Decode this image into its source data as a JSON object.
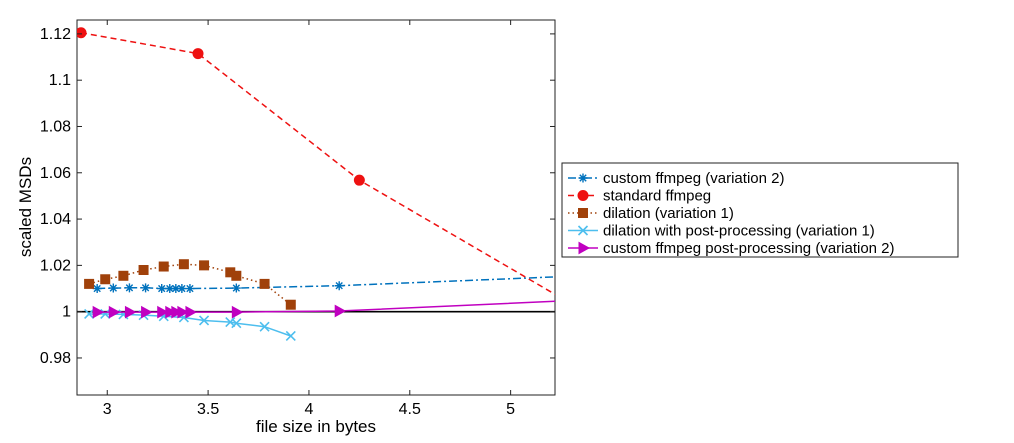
{
  "chart_data": {
    "type": "line",
    "title": "",
    "xlabel": "file size in bytes",
    "ylabel": "scaled MSDs",
    "xlim": [
      2.85,
      5.22
    ],
    "ylim": [
      0.964,
      1.126
    ],
    "xticks": [
      3,
      3.5,
      4,
      4.5,
      5
    ],
    "xtick_labels": [
      "3",
      "3.5",
      "4",
      "4.5",
      "5"
    ],
    "yticks": [
      0.98,
      1.0,
      1.02,
      1.04,
      1.06,
      1.08,
      1.1,
      1.12
    ],
    "ytick_labels": [
      "0.98",
      "1",
      "1.02",
      "1.04",
      "1.06",
      "1.08",
      "1.1",
      "1.12"
    ],
    "grid": false,
    "legend_position": "outside-right",
    "reference_line": {
      "y": 1.0,
      "color": "#000000"
    },
    "series": [
      {
        "name": "custom ffmpeg (variation 2)",
        "color": "#0072BD",
        "linestyle": "dashdot",
        "marker": "asterisk",
        "x": [
          2.95,
          3.03,
          3.11,
          3.19,
          3.27,
          3.31,
          3.34,
          3.37,
          3.41,
          3.64,
          4.15,
          5.22
        ],
        "y": [
          1.01,
          1.0102,
          1.0103,
          1.0103,
          1.01,
          1.01,
          1.01,
          1.01,
          1.01,
          1.0102,
          1.0112,
          1.015
        ],
        "marked_points": 11
      },
      {
        "name": "standard ffmpeg",
        "color": "#EE1111",
        "linestyle": "dashed",
        "marker": "circle",
        "x": [
          2.87,
          3.45,
          4.25,
          5.22
        ],
        "y": [
          1.1205,
          1.1115,
          1.0568,
          1.0075
        ],
        "marked_points": 3
      },
      {
        "name": "dilation (variation 1)",
        "color": "#A0410A",
        "linestyle": "dotted",
        "marker": "square",
        "x": [
          2.91,
          2.99,
          3.08,
          3.18,
          3.28,
          3.38,
          3.48,
          3.61,
          3.64,
          3.78,
          3.91
        ],
        "y": [
          1.012,
          1.014,
          1.0155,
          1.018,
          1.0195,
          1.0205,
          1.02,
          1.017,
          1.0155,
          1.012,
          1.003
        ],
        "marked_points": 11
      },
      {
        "name": "dilation with post-processing (variation 1)",
        "color": "#4DBEEE",
        "linestyle": "solid",
        "marker": "x",
        "x": [
          2.91,
          2.99,
          3.08,
          3.18,
          3.28,
          3.38,
          3.48,
          3.61,
          3.64,
          3.78,
          3.91
        ],
        "y": [
          0.999,
          0.999,
          0.9988,
          0.9985,
          0.998,
          0.9975,
          0.9962,
          0.9955,
          0.995,
          0.9935,
          0.9895
        ],
        "marked_points": 11
      },
      {
        "name": "custom ffmpeg post-processing (variation 2)",
        "color": "#C000C0",
        "linestyle": "solid",
        "marker": "triangle-right",
        "x": [
          2.95,
          3.03,
          3.11,
          3.19,
          3.27,
          3.31,
          3.34,
          3.37,
          3.41,
          3.64,
          4.15,
          5.22
        ],
        "y": [
          0.9998,
          0.9998,
          0.9998,
          0.9998,
          0.9998,
          0.9998,
          0.9998,
          0.9998,
          0.9998,
          0.9998,
          1.0003,
          1.0045
        ],
        "marked_points": 11
      }
    ]
  }
}
